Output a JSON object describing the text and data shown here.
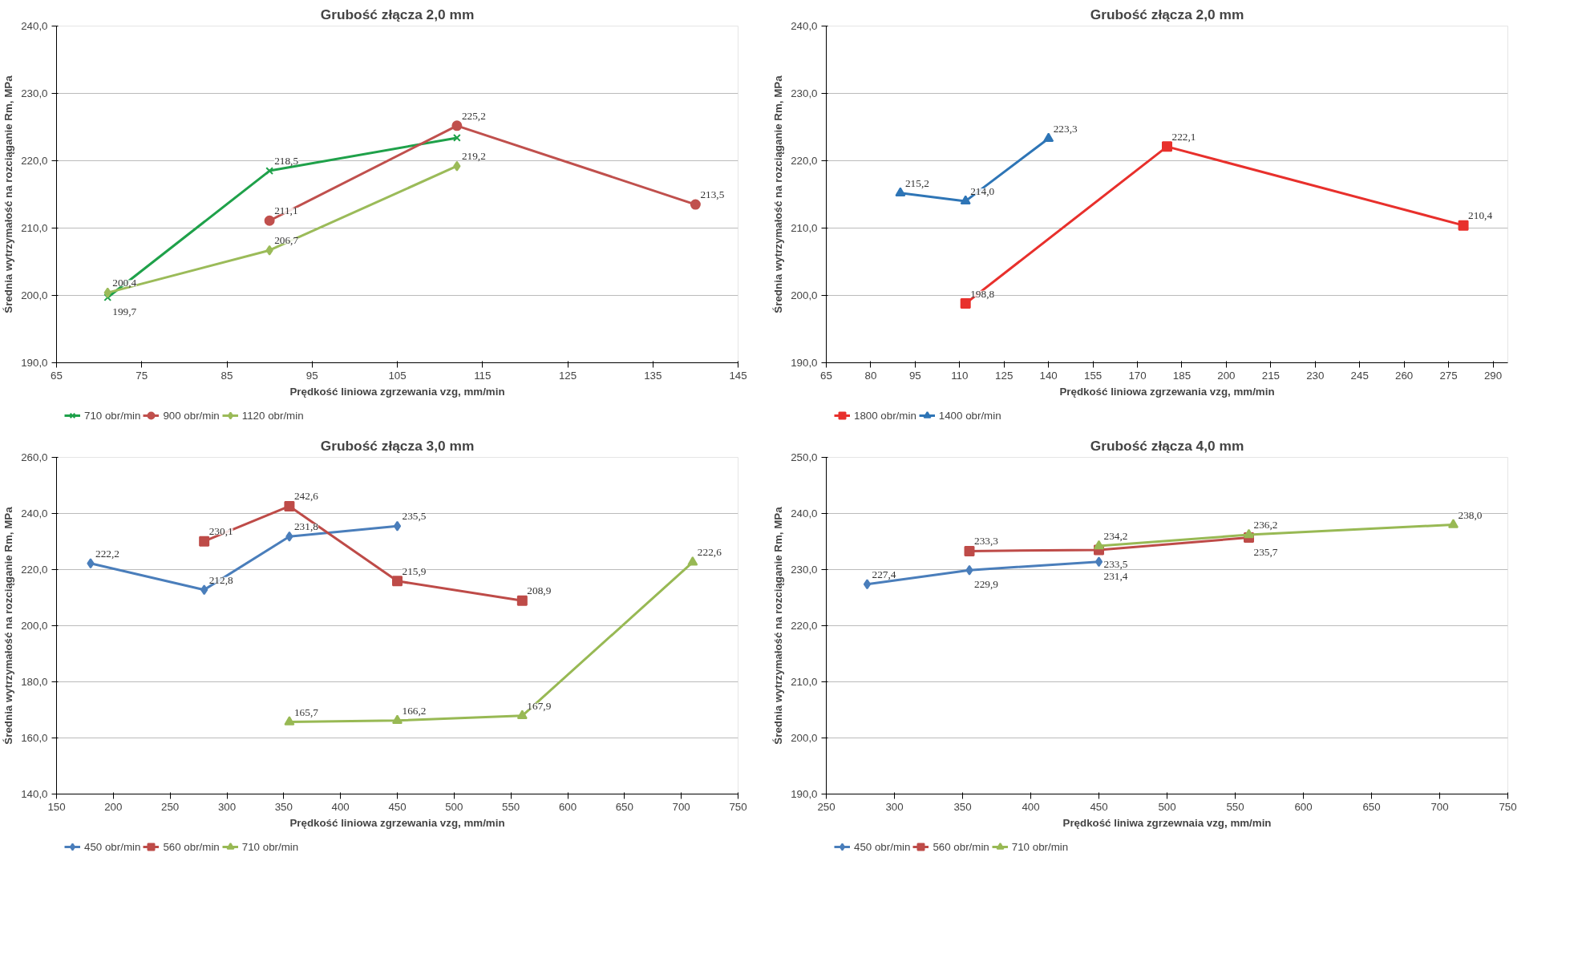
{
  "chart_data": [
    {
      "type": "line",
      "title": "Grubość złącza 2,0 mm",
      "xlabel": "Prędkość liniowa zgrzewania vzg, mm/min",
      "ylabel": "Średnia wytrzymałość na rozciąganie Rm, MPa",
      "xlim": [
        65,
        145
      ],
      "xticks": [
        65,
        75,
        85,
        95,
        105,
        115,
        125,
        135,
        145
      ],
      "ylim": [
        190,
        240
      ],
      "yticks": [
        {
          "value": 190,
          "label": "190,0"
        },
        {
          "value": 200,
          "label": "200,0"
        },
        {
          "value": 210,
          "label": "210,0"
        },
        {
          "value": 220,
          "label": "220,0"
        },
        {
          "value": 230,
          "label": "230,0"
        },
        {
          "value": 240,
          "label": "240,0"
        }
      ],
      "grid": "y",
      "legend": "bottom",
      "series": [
        {
          "name": "710 obr/min",
          "color": "#1fa14a",
          "marker": "cross",
          "x": [
            71,
            90,
            112
          ],
          "values": [
            199.7,
            218.5,
            223.4
          ],
          "value_labels": [
            "199,7",
            "218,5",
            null
          ]
        },
        {
          "name": "900 obr/min",
          "color": "#c0504d",
          "marker": "circle",
          "x": [
            90,
            112,
            140
          ],
          "values": [
            211.1,
            225.2,
            213.5
          ],
          "value_labels": [
            "211,1",
            "225,2",
            "213,5"
          ]
        },
        {
          "name": "1120 obr/min",
          "color": "#9bbb59",
          "marker": "diamond",
          "x": [
            71,
            90,
            112
          ],
          "values": [
            200.4,
            206.7,
            219.2
          ],
          "value_labels": [
            "200,4",
            "206,7",
            "219,2"
          ]
        }
      ]
    },
    {
      "type": "line",
      "title": "Grubość złącza 2,0 mm",
      "xlabel": "Prędkość liniowa zgrzewania vzg, mm/min",
      "ylabel": "Średnia wytrzymałość na rozciąganie Rm, MPa",
      "xlim": [
        65,
        295
      ],
      "xticks": [
        65,
        80,
        95,
        110,
        125,
        140,
        155,
        170,
        185,
        200,
        215,
        230,
        245,
        260,
        275,
        290
      ],
      "ylim": [
        190,
        240
      ],
      "yticks": [
        {
          "value": 190,
          "label": "190,0"
        },
        {
          "value": 200,
          "label": "200,0"
        },
        {
          "value": 210,
          "label": "210,0"
        },
        {
          "value": 220,
          "label": "220,0"
        },
        {
          "value": 230,
          "label": "230,0"
        },
        {
          "value": 240,
          "label": "240,0"
        }
      ],
      "grid": "y",
      "legend": "bottom",
      "series": [
        {
          "name": "1800 obr/min",
          "color": "#e8302c",
          "marker": "square",
          "x": [
            112,
            180,
            280
          ],
          "values": [
            198.8,
            222.1,
            210.4
          ],
          "value_labels": [
            "198,8",
            "222,1",
            "210,4"
          ]
        },
        {
          "name": "1400 obr/min",
          "color": "#2e75b6",
          "marker": "triangle",
          "x": [
            90,
            112,
            140
          ],
          "values": [
            215.2,
            214.0,
            223.3
          ],
          "value_labels": [
            "215,2",
            "214,0",
            "223,3"
          ]
        }
      ]
    },
    {
      "type": "line",
      "title": "Grubość złącza 3,0 mm",
      "xlabel": "Prędkość liniowa zgrzewania vzg, mm/min",
      "ylabel": "Średnia wytrzymałość na rozciąganie Rm, MPa",
      "xlim": [
        150,
        750
      ],
      "xticks": [
        150,
        200,
        250,
        300,
        350,
        400,
        450,
        500,
        550,
        600,
        650,
        700,
        750
      ],
      "ylim": [
        140,
        260
      ],
      "yticks": [
        {
          "value": 140,
          "label": "140,0"
        },
        {
          "value": 160,
          "label": "160,0"
        },
        {
          "value": 180,
          "label": "180,0"
        },
        {
          "value": 200,
          "label": "200,0"
        },
        {
          "value": 220,
          "label": "220,0"
        },
        {
          "value": 240,
          "label": "240,0"
        },
        {
          "value": 260,
          "label": "260,0"
        }
      ],
      "grid": "y",
      "legend": "bottom",
      "series": [
        {
          "name": "450 obr/min",
          "color": "#4a7ebb",
          "marker": "diamond",
          "x": [
            180,
            280,
            355,
            450
          ],
          "values": [
            222.2,
            212.8,
            231.8,
            235.5
          ],
          "value_labels": [
            "222,2",
            "212,8",
            "231,8",
            "235,5"
          ]
        },
        {
          "name": "560 obr/min",
          "color": "#be4b48",
          "marker": "square",
          "x": [
            280,
            355,
            450,
            560
          ],
          "values": [
            230.1,
            242.6,
            215.9,
            208.9
          ],
          "value_labels": [
            "230,1",
            "242,6",
            "215,9",
            "208,9"
          ]
        },
        {
          "name": "710 obr/min",
          "color": "#98b954",
          "marker": "triangle",
          "x": [
            355,
            450,
            560,
            710
          ],
          "values": [
            165.7,
            166.2,
            167.9,
            222.6
          ],
          "value_labels": [
            "165,7",
            "166,2",
            "167,9",
            "222,6"
          ]
        }
      ]
    },
    {
      "type": "line",
      "title": "Grubość złącza 4,0 mm",
      "xlabel": "Prędkość liniwa zgrzewnaia vzg, mm/min",
      "ylabel": "Średnia wytrzymałość na rozciąganie Rm, MPa",
      "xlim": [
        250,
        750
      ],
      "xticks": [
        250,
        300,
        350,
        400,
        450,
        500,
        550,
        600,
        650,
        700,
        750
      ],
      "ylim": [
        190,
        250
      ],
      "yticks": [
        {
          "value": 190,
          "label": "190,0"
        },
        {
          "value": 200,
          "label": "200,0"
        },
        {
          "value": 210,
          "label": "210,0"
        },
        {
          "value": 220,
          "label": "220,0"
        },
        {
          "value": 230,
          "label": "230,0"
        },
        {
          "value": 240,
          "label": "240,0"
        },
        {
          "value": 250,
          "label": "250,0"
        }
      ],
      "grid": "y",
      "legend": "bottom",
      "series": [
        {
          "name": "450 obr/min",
          "color": "#4a7ebb",
          "marker": "diamond",
          "x": [
            280,
            355,
            450
          ],
          "values": [
            227.4,
            229.9,
            231.4
          ],
          "value_labels": [
            "227,4",
            "229,9",
            "231,4"
          ]
        },
        {
          "name": "560 obr/min",
          "color": "#be4b48",
          "marker": "square",
          "x": [
            355,
            450,
            560
          ],
          "values": [
            233.3,
            233.5,
            235.7
          ],
          "value_labels": [
            "233,3",
            "233,5",
            "235,7"
          ]
        },
        {
          "name": "710 obr/min",
          "color": "#98b954",
          "marker": "triangle",
          "x": [
            450,
            560,
            710
          ],
          "values": [
            234.2,
            236.2,
            238.0
          ],
          "value_labels": [
            "234,2",
            "236,2",
            "238,0"
          ]
        }
      ]
    }
  ]
}
